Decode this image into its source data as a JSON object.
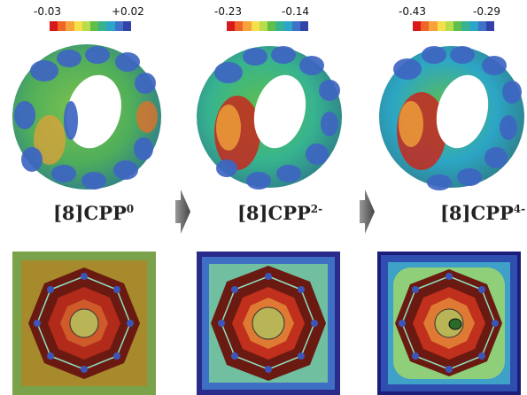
{
  "panels": [
    {
      "min": "-0.03",
      "max": "+0.02",
      "name": "[8]CPP",
      "charge": "0"
    },
    {
      "min": "-0.23",
      "max": "-0.14",
      "name": "[8]CPP",
      "charge": "2-"
    },
    {
      "min": "-0.43",
      "max": "-0.29",
      "name": "[8]CPP",
      "charge": "4-"
    }
  ],
  "colorbar": [
    "#d7191c",
    "#f0642a",
    "#f7a33a",
    "#f5e04a",
    "#b8dd4a",
    "#5fbf4a",
    "#37b48f",
    "#2ca6c6",
    "#3f72c7",
    "#3342a8"
  ]
}
